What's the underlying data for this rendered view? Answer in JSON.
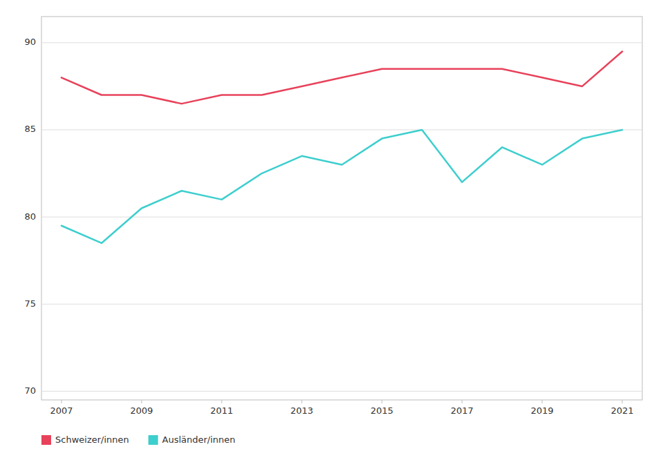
{
  "chart_data": {
    "type": "line",
    "x": [
      2007,
      2008,
      2009,
      2010,
      2011,
      2012,
      2013,
      2014,
      2015,
      2016,
      2017,
      2018,
      2019,
      2020,
      2021
    ],
    "xlim": [
      2006.5,
      2021.5
    ],
    "xticks": [
      2007,
      2009,
      2011,
      2013,
      2015,
      2017,
      2019,
      2021
    ],
    "ylim": [
      69.5,
      91.5
    ],
    "yticks": [
      70,
      75,
      80,
      85,
      90
    ],
    "grid": "y",
    "legend": "bottom-left",
    "series": [
      {
        "name": "Schweizer/innen",
        "color": "#E8415A",
        "values": [
          88.0,
          87.0,
          87.0,
          86.5,
          87.0,
          87.0,
          87.5,
          88.0,
          88.5,
          88.5,
          88.5,
          88.5,
          88.0,
          87.5,
          89.5
        ]
      },
      {
        "name": "Ausländer/innen",
        "color": "#3ECECE",
        "values": [
          79.5,
          78.5,
          80.5,
          81.5,
          81.0,
          82.5,
          83.5,
          83.0,
          84.5,
          85.0,
          82.0,
          84.0,
          83.0,
          84.5,
          85.0
        ]
      }
    ]
  }
}
